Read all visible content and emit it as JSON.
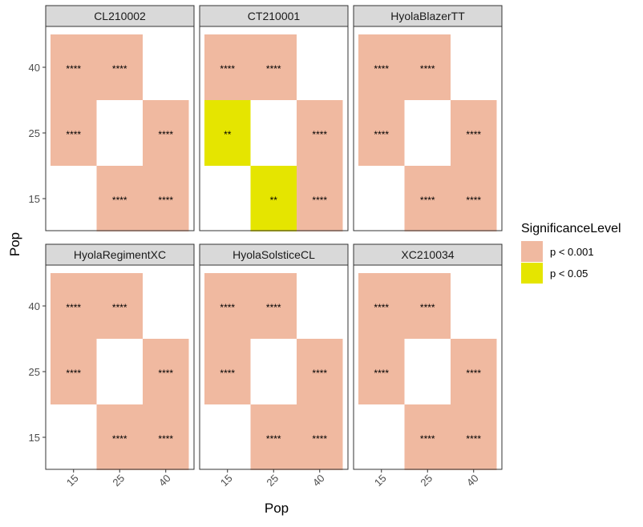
{
  "chart_data": {
    "type": "heatmap",
    "xlabel": "Pop",
    "ylabel": "Pop",
    "x_categories": [
      "15",
      "25",
      "40"
    ],
    "y_categories": [
      "15",
      "25",
      "40"
    ],
    "legend": {
      "title": "SignificanceLevel",
      "placement": "right",
      "entries": [
        {
          "label": "p < 0.001",
          "color": "#f0b9a0"
        },
        {
          "label": "p < 0.05",
          "color": "#e5e500"
        }
      ]
    },
    "panels": [
      {
        "name": "CL210002",
        "cells": [
          {
            "x": "15",
            "y": "40",
            "level": "p < 0.001",
            "label": "****"
          },
          {
            "x": "25",
            "y": "40",
            "level": "p < 0.001",
            "label": "****"
          },
          {
            "x": "15",
            "y": "25",
            "level": "p < 0.001",
            "label": "****"
          },
          {
            "x": "40",
            "y": "25",
            "level": "p < 0.001",
            "label": "****"
          },
          {
            "x": "25",
            "y": "15",
            "level": "p < 0.001",
            "label": "****"
          },
          {
            "x": "40",
            "y": "15",
            "level": "p < 0.001",
            "label": "****"
          }
        ]
      },
      {
        "name": "CT210001",
        "cells": [
          {
            "x": "15",
            "y": "40",
            "level": "p < 0.001",
            "label": "****"
          },
          {
            "x": "25",
            "y": "40",
            "level": "p < 0.001",
            "label": "****"
          },
          {
            "x": "15",
            "y": "25",
            "level": "p < 0.05",
            "label": "**"
          },
          {
            "x": "40",
            "y": "25",
            "level": "p < 0.001",
            "label": "****"
          },
          {
            "x": "25",
            "y": "15",
            "level": "p < 0.05",
            "label": "**"
          },
          {
            "x": "40",
            "y": "15",
            "level": "p < 0.001",
            "label": "****"
          }
        ]
      },
      {
        "name": "HyolaBlazerTT",
        "cells": [
          {
            "x": "15",
            "y": "40",
            "level": "p < 0.001",
            "label": "****"
          },
          {
            "x": "25",
            "y": "40",
            "level": "p < 0.001",
            "label": "****"
          },
          {
            "x": "15",
            "y": "25",
            "level": "p < 0.001",
            "label": "****"
          },
          {
            "x": "40",
            "y": "25",
            "level": "p < 0.001",
            "label": "****"
          },
          {
            "x": "25",
            "y": "15",
            "level": "p < 0.001",
            "label": "****"
          },
          {
            "x": "40",
            "y": "15",
            "level": "p < 0.001",
            "label": "****"
          }
        ]
      },
      {
        "name": "HyolaRegimentXC",
        "cells": [
          {
            "x": "15",
            "y": "40",
            "level": "p < 0.001",
            "label": "****"
          },
          {
            "x": "25",
            "y": "40",
            "level": "p < 0.001",
            "label": "****"
          },
          {
            "x": "15",
            "y": "25",
            "level": "p < 0.001",
            "label": "****"
          },
          {
            "x": "40",
            "y": "25",
            "level": "p < 0.001",
            "label": "****"
          },
          {
            "x": "25",
            "y": "15",
            "level": "p < 0.001",
            "label": "****"
          },
          {
            "x": "40",
            "y": "15",
            "level": "p < 0.001",
            "label": "****"
          }
        ]
      },
      {
        "name": "HyolaSolsticeCL",
        "cells": [
          {
            "x": "15",
            "y": "40",
            "level": "p < 0.001",
            "label": "****"
          },
          {
            "x": "25",
            "y": "40",
            "level": "p < 0.001",
            "label": "****"
          },
          {
            "x": "15",
            "y": "25",
            "level": "p < 0.001",
            "label": "****"
          },
          {
            "x": "40",
            "y": "25",
            "level": "p < 0.001",
            "label": "****"
          },
          {
            "x": "25",
            "y": "15",
            "level": "p < 0.001",
            "label": "****"
          },
          {
            "x": "40",
            "y": "15",
            "level": "p < 0.001",
            "label": "****"
          }
        ]
      },
      {
        "name": "XC210034",
        "cells": [
          {
            "x": "15",
            "y": "40",
            "level": "p < 0.001",
            "label": "****"
          },
          {
            "x": "25",
            "y": "40",
            "level": "p < 0.001",
            "label": "****"
          },
          {
            "x": "15",
            "y": "25",
            "level": "p < 0.001",
            "label": "****"
          },
          {
            "x": "40",
            "y": "25",
            "level": "p < 0.001",
            "label": "****"
          },
          {
            "x": "25",
            "y": "15",
            "level": "p < 0.001",
            "label": "****"
          },
          {
            "x": "40",
            "y": "15",
            "level": "p < 0.001",
            "label": "****"
          }
        ]
      }
    ],
    "grid": false
  }
}
